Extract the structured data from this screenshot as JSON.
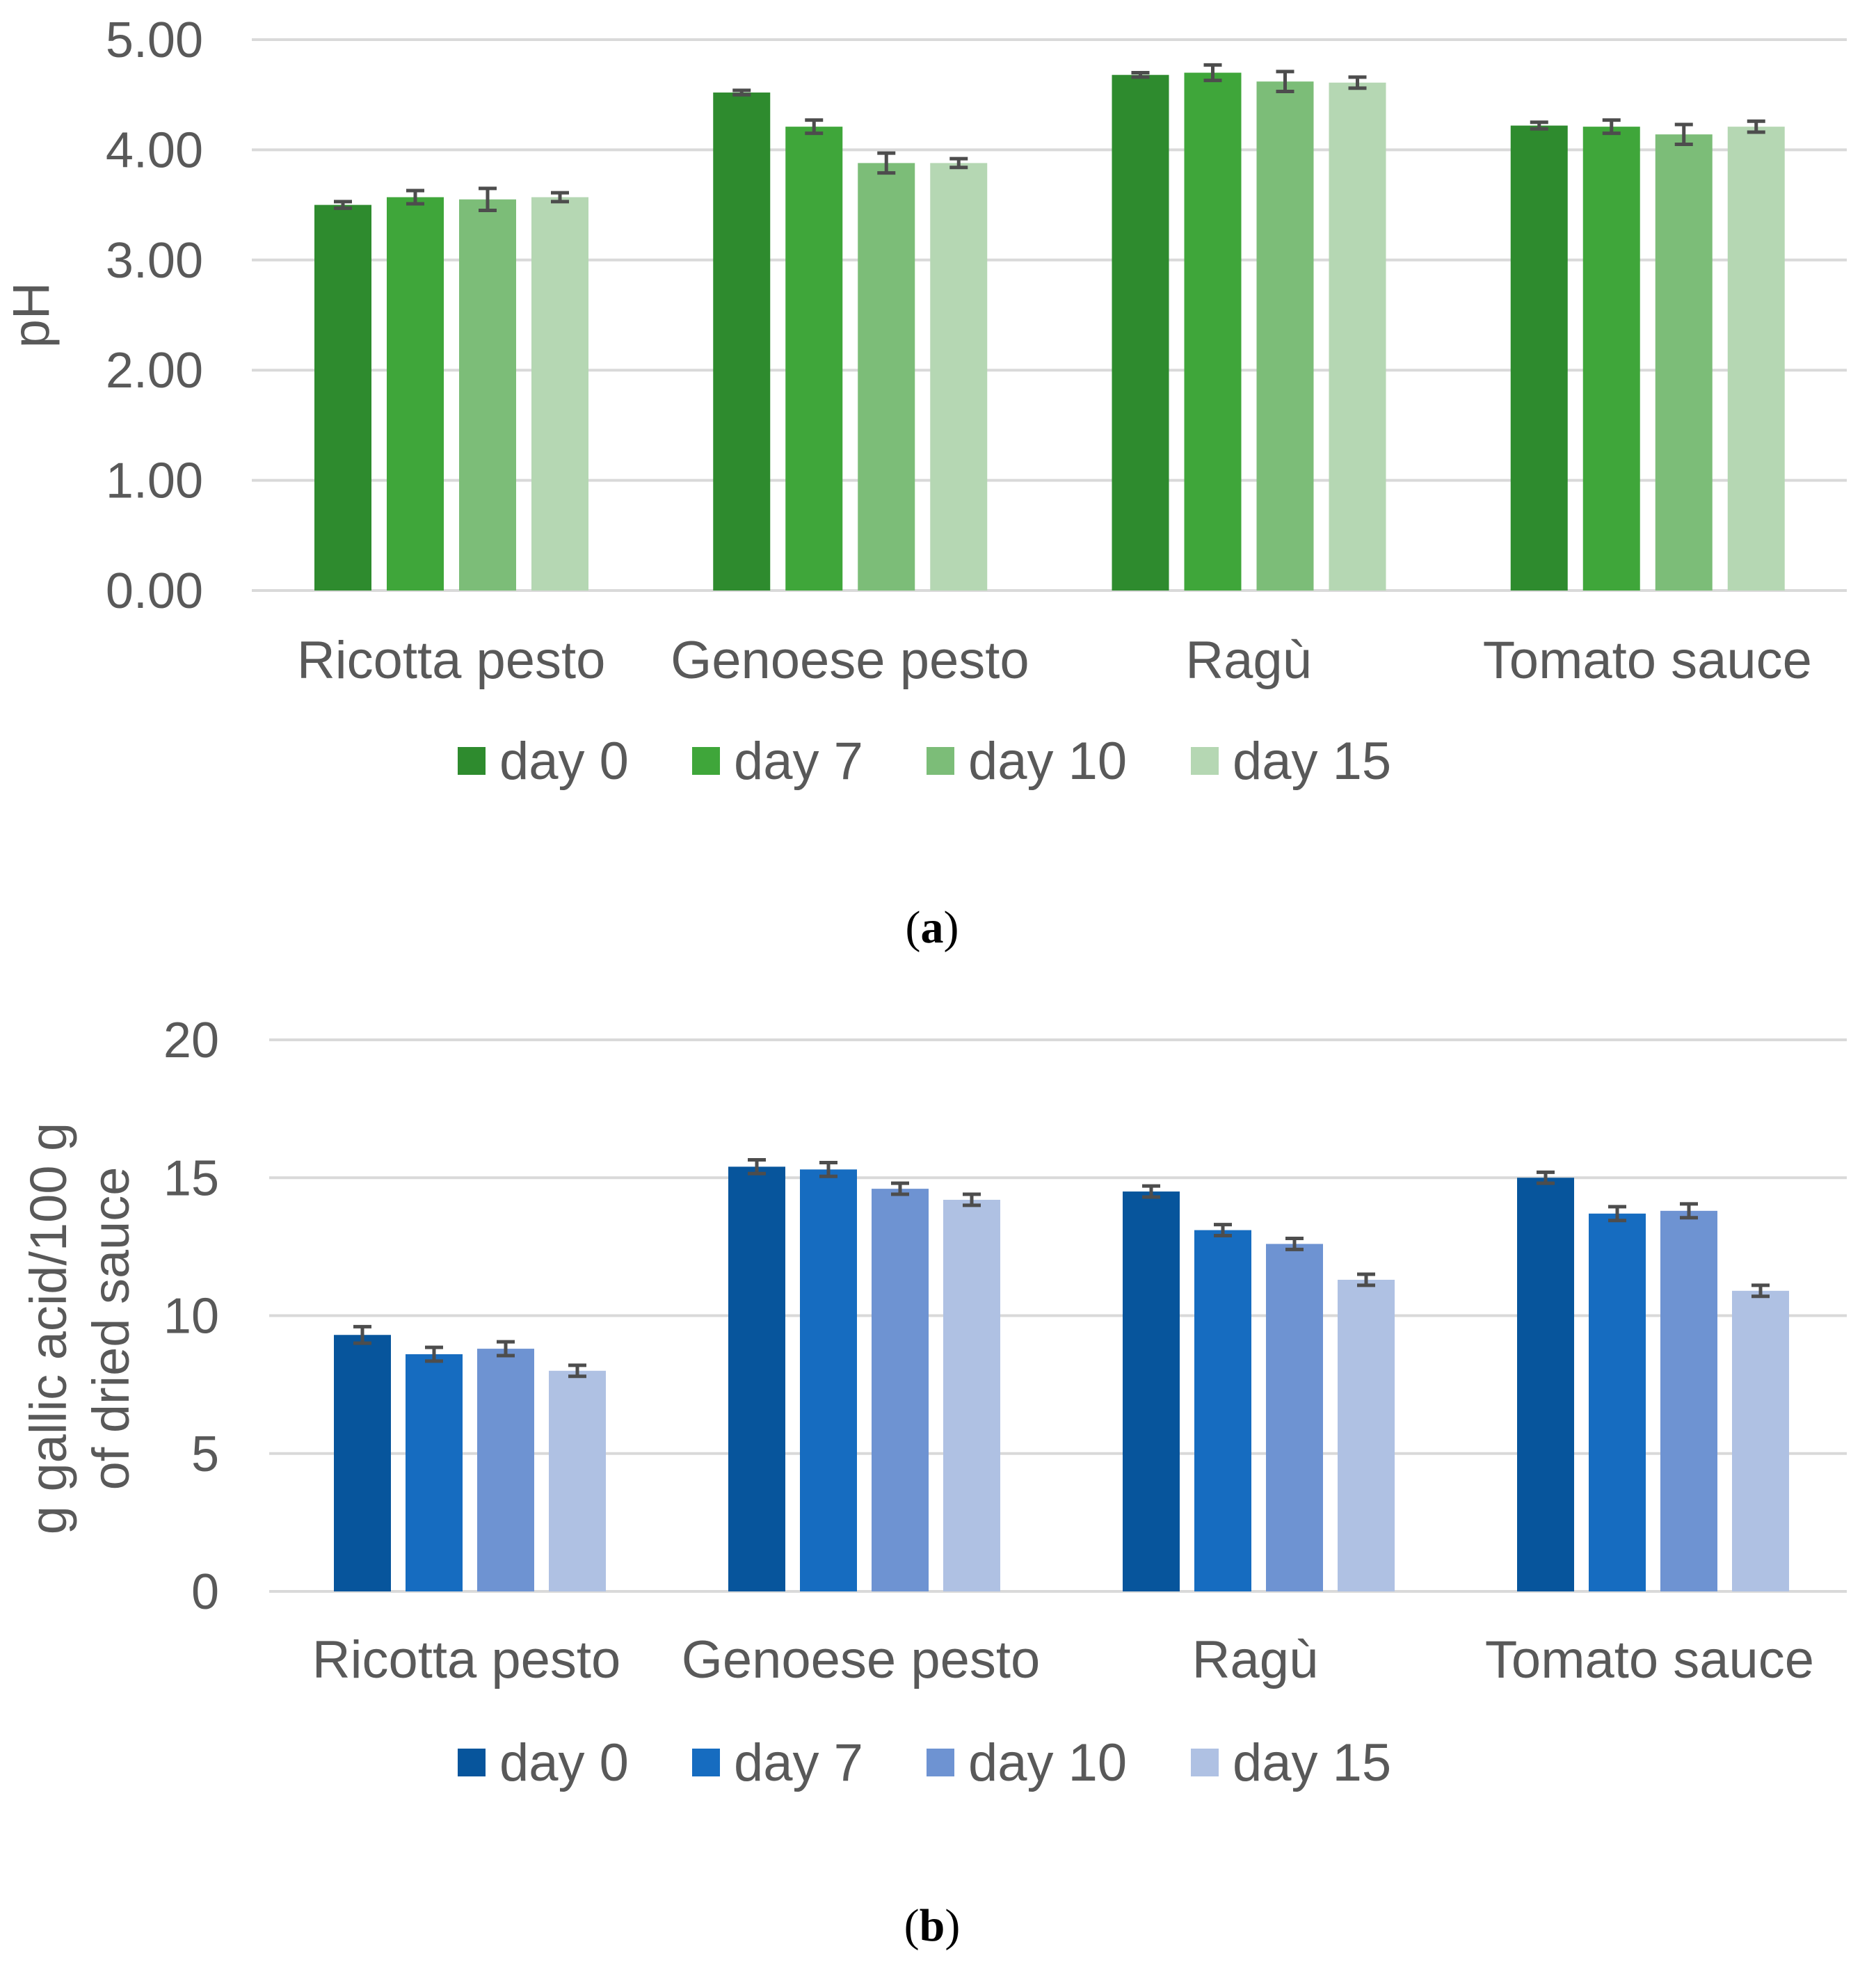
{
  "chart_data": [
    {
      "id": "a",
      "type": "bar",
      "caption": "a",
      "ylabel": "pH",
      "ylim": [
        0,
        5
      ],
      "yticks": [
        "0.00",
        "1.00",
        "2.00",
        "3.00",
        "4.00",
        "5.00"
      ],
      "yticks_values": [
        0,
        1,
        2,
        3,
        4,
        5
      ],
      "categories": [
        "Ricotta pesto",
        "Genoese pesto",
        "Ragù",
        "Tomato sauce"
      ],
      "legend_position": "bottom",
      "grid": true,
      "series": [
        {
          "name": "day 0",
          "color": "#2e8b2e",
          "values": [
            3.5,
            4.52,
            4.68,
            4.22
          ],
          "errors": [
            0.03,
            0.02,
            0.02,
            0.03
          ]
        },
        {
          "name": "day 7",
          "color": "#3fa63a",
          "values": [
            3.57,
            4.21,
            4.7,
            4.21
          ],
          "errors": [
            0.06,
            0.06,
            0.07,
            0.06
          ]
        },
        {
          "name": "day 10",
          "color": "#7cbd78",
          "values": [
            3.55,
            3.88,
            4.62,
            4.14
          ],
          "errors": [
            0.1,
            0.09,
            0.09,
            0.09
          ]
        },
        {
          "name": "day 15",
          "color": "#b5d7b3",
          "values": [
            3.57,
            3.88,
            4.61,
            4.21
          ],
          "errors": [
            0.04,
            0.04,
            0.05,
            0.05
          ]
        }
      ]
    },
    {
      "id": "b",
      "type": "bar",
      "caption": "b",
      "ylabel_lines": [
        "g gallic acid/100 g",
        "of dried sauce"
      ],
      "ylim": [
        0,
        20
      ],
      "yticks": [
        "0",
        "5",
        "10",
        "15",
        "20"
      ],
      "yticks_values": [
        0,
        5,
        10,
        15,
        20
      ],
      "categories": [
        "Ricotta pesto",
        "Genoese pesto",
        "Ragù",
        "Tomato sauce"
      ],
      "legend_position": "bottom",
      "grid": true,
      "series": [
        {
          "name": "day 0",
          "color": "#07559c",
          "values": [
            9.3,
            15.4,
            14.5,
            15.0
          ],
          "errors": [
            0.3,
            0.25,
            0.2,
            0.2
          ]
        },
        {
          "name": "day 7",
          "color": "#166cc0",
          "values": [
            8.6,
            15.3,
            13.1,
            13.7
          ],
          "errors": [
            0.25,
            0.25,
            0.2,
            0.25
          ]
        },
        {
          "name": "day 10",
          "color": "#6e93d2",
          "values": [
            8.8,
            14.6,
            12.6,
            13.8
          ],
          "errors": [
            0.25,
            0.2,
            0.2,
            0.25
          ]
        },
        {
          "name": "day 15",
          "color": "#afc1e3",
          "values": [
            8.0,
            14.2,
            11.3,
            10.9
          ],
          "errors": [
            0.2,
            0.2,
            0.2,
            0.2
          ]
        }
      ]
    }
  ]
}
